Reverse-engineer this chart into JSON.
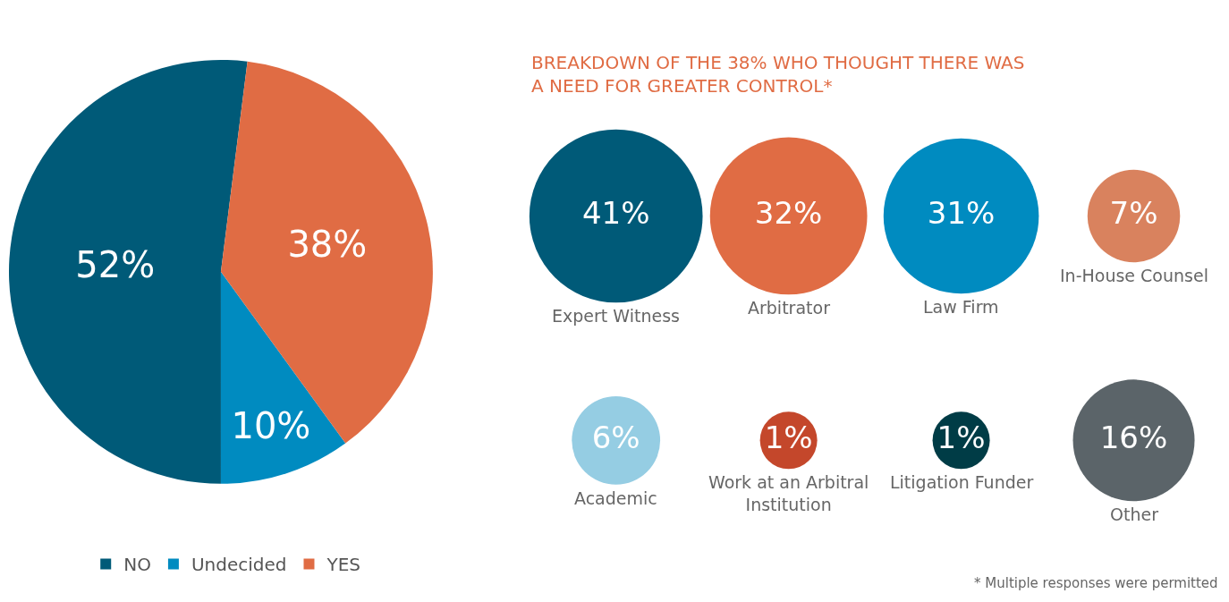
{
  "chart_data": [
    {
      "type": "pie",
      "categories": [
        "NO",
        "Undecided",
        "YES"
      ],
      "values": [
        52,
        10,
        38
      ],
      "value_labels": [
        "52%",
        "10%",
        "38%"
      ],
      "colors": [
        "#005a78",
        "#008bc0",
        "#e06c44"
      ],
      "legend": "bottom"
    },
    {
      "type": "other",
      "title": "BREAKDOWN OF THE 38% WHO THOUGHT THERE WAS A NEED FOR GREATER CONTROL*",
      "categories": [
        "Expert Witness",
        "Arbitrator",
        "Law Firm",
        "In-House Counsel",
        "Academic",
        "Work at an Arbitral Institution",
        "Litigation Funder",
        "Other"
      ],
      "values": [
        41,
        32,
        31,
        7,
        6,
        1,
        1,
        16
      ],
      "value_labels": [
        "41%",
        "32%",
        "31%",
        "7%",
        "6%",
        "1%",
        "1%",
        "16%"
      ],
      "colors": [
        "#005a78",
        "#e06c44",
        "#008bc0",
        "#d9825e",
        "#95cde3",
        "#c4472b",
        "#003c46",
        "#5b6469"
      ],
      "annotations": [
        "* Multiple responses were permitted"
      ]
    }
  ]
}
